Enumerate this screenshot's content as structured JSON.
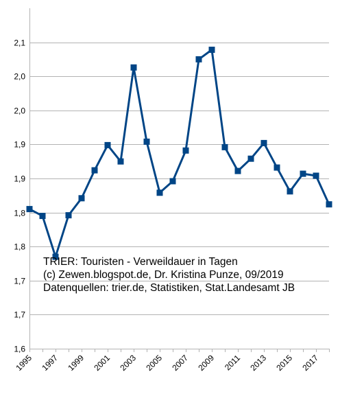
{
  "chart_data": {
    "type": "line",
    "x": [
      "1995",
      "1996",
      "1997",
      "1998",
      "1999",
      "2000",
      "2001",
      "2002",
      "2003",
      "2004",
      "2005",
      "2006",
      "2007",
      "2008",
      "2009",
      "2010",
      "2011",
      "2012",
      "2013",
      "2014",
      "2015",
      "2016",
      "2017",
      "2018"
    ],
    "series": [
      {
        "values": [
          1.805,
          1.795,
          1.735,
          1.796,
          1.821,
          1.862,
          1.899,
          1.875,
          2.013,
          1.904,
          1.829,
          1.846,
          1.891,
          2.025,
          2.039,
          1.896,
          1.861,
          1.879,
          1.902,
          1.866,
          1.831,
          1.857,
          1.854,
          1.812
        ],
        "color": "#004586",
        "marker": "square"
      }
    ],
    "ylim": [
      1.6,
      2.1
    ],
    "yticks": [
      {
        "value": 1.6,
        "label": "1,6"
      },
      {
        "value": 1.65,
        "label": "1,7"
      },
      {
        "value": 1.7,
        "label": "1,7"
      },
      {
        "value": 1.75,
        "label": "1,8"
      },
      {
        "value": 1.8,
        "label": "1,8"
      },
      {
        "value": 1.85,
        "label": "1,9"
      },
      {
        "value": 1.9,
        "label": "1,9"
      },
      {
        "value": 1.95,
        "label": "2,0"
      },
      {
        "value": 2.0,
        "label": "2,0"
      },
      {
        "value": 2.05,
        "label": "2,1"
      }
    ],
    "xtick_labels": [
      "1995",
      "1997",
      "1999",
      "2001",
      "2003",
      "2005",
      "2007",
      "2009",
      "2011",
      "2013",
      "2015",
      "2017"
    ],
    "grid": "horizontal",
    "annotations": [
      "TRIER: Touristen - Verweildauer in Tagen",
      "(c) Zewen.blogspot.de, Dr. Kristina Punze, 09/2019",
      "Datenquellen: trier.de, Statistiken, Stat.Landesamt JB"
    ]
  }
}
